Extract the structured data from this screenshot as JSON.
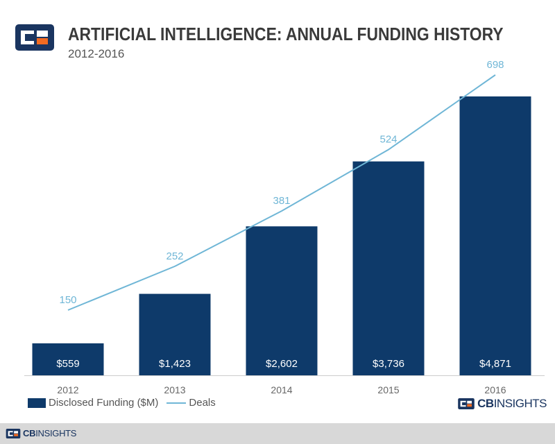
{
  "header": {
    "title": "ARTIFICIAL INTELLIGENCE: ANNUAL FUNDING HISTORY",
    "subtitle": "2012-2016",
    "logo_icon": "cb-insights-logo-icon"
  },
  "colors": {
    "bar": "#0e3a6a",
    "line": "#6fb6d6",
    "logo_blue": "#1a3560",
    "logo_orange": "#f26b21",
    "footer_bg": "#d8d8d8"
  },
  "chart_data": {
    "type": "bar",
    "categories": [
      "2012",
      "2013",
      "2014",
      "2015",
      "2016"
    ],
    "series": [
      {
        "name": "Disclosed Funding ($M)",
        "type": "bar",
        "values": [
          559,
          1423,
          2602,
          3736,
          4871
        ],
        "labels": [
          "$559",
          "$1,423",
          "$2,602",
          "$3,736",
          "$4,871"
        ]
      },
      {
        "name": "Deals",
        "type": "line",
        "values": [
          150,
          252,
          381,
          524,
          698
        ],
        "labels": [
          "150",
          "252",
          "381",
          "524",
          "698"
        ]
      }
    ],
    "title": "ARTIFICIAL INTELLIGENCE: ANNUAL FUNDING HISTORY",
    "subtitle": "2012-2016",
    "xlabel": "",
    "ylabel": "",
    "ylim_bars": [
      0,
      5500
    ],
    "ylim_line": [
      0,
      760
    ],
    "grid": false,
    "legend_position": "bottom-left"
  },
  "legend": {
    "funding_label": "Disclosed Funding ($M)",
    "deals_label": "Deals"
  },
  "brand": {
    "cb": "CB",
    "insights": "INSIGHTS"
  },
  "footer": {
    "cb": "CB",
    "insights": "INSIGHTS"
  }
}
